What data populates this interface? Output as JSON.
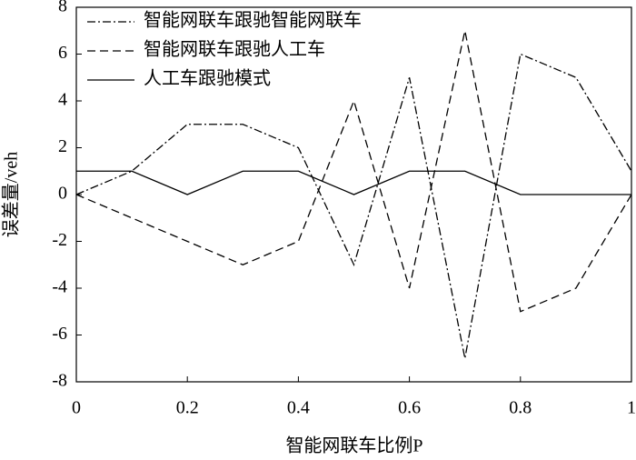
{
  "chart_data": {
    "type": "line",
    "xlabel": "智能网联车比例P",
    "ylabel": "误差量/veh",
    "x": [
      0,
      0.1,
      0.2,
      0.3,
      0.4,
      0.5,
      0.6,
      0.7,
      0.8,
      0.9,
      1
    ],
    "series": [
      {
        "name": "智能网联车跟驰智能网联车",
        "color": "#000000",
        "dash": "dashdot",
        "values": [
          0,
          1,
          3,
          3,
          2,
          -3,
          5,
          -7,
          6,
          5,
          1
        ]
      },
      {
        "name": "智能网联车跟驰人工车",
        "color": "#000000",
        "dash": "dashed",
        "values": [
          0,
          -1,
          -2,
          -3,
          -2,
          4,
          -4,
          7,
          -5,
          -4,
          0
        ]
      },
      {
        "name": "人工车跟驰模式",
        "color": "#000000",
        "dash": "solid",
        "values": [
          1,
          1,
          0,
          1,
          1,
          0,
          1,
          1,
          0,
          0,
          0
        ]
      }
    ],
    "xlim": [
      0,
      1
    ],
    "xticks": [
      0,
      0.2,
      0.4,
      0.6,
      0.8,
      1
    ],
    "ylim": [
      -8,
      8
    ],
    "yticks": [
      -8,
      -6,
      -4,
      -2,
      0,
      2,
      4,
      6,
      8
    ],
    "grid": false,
    "legend": "upper left"
  }
}
